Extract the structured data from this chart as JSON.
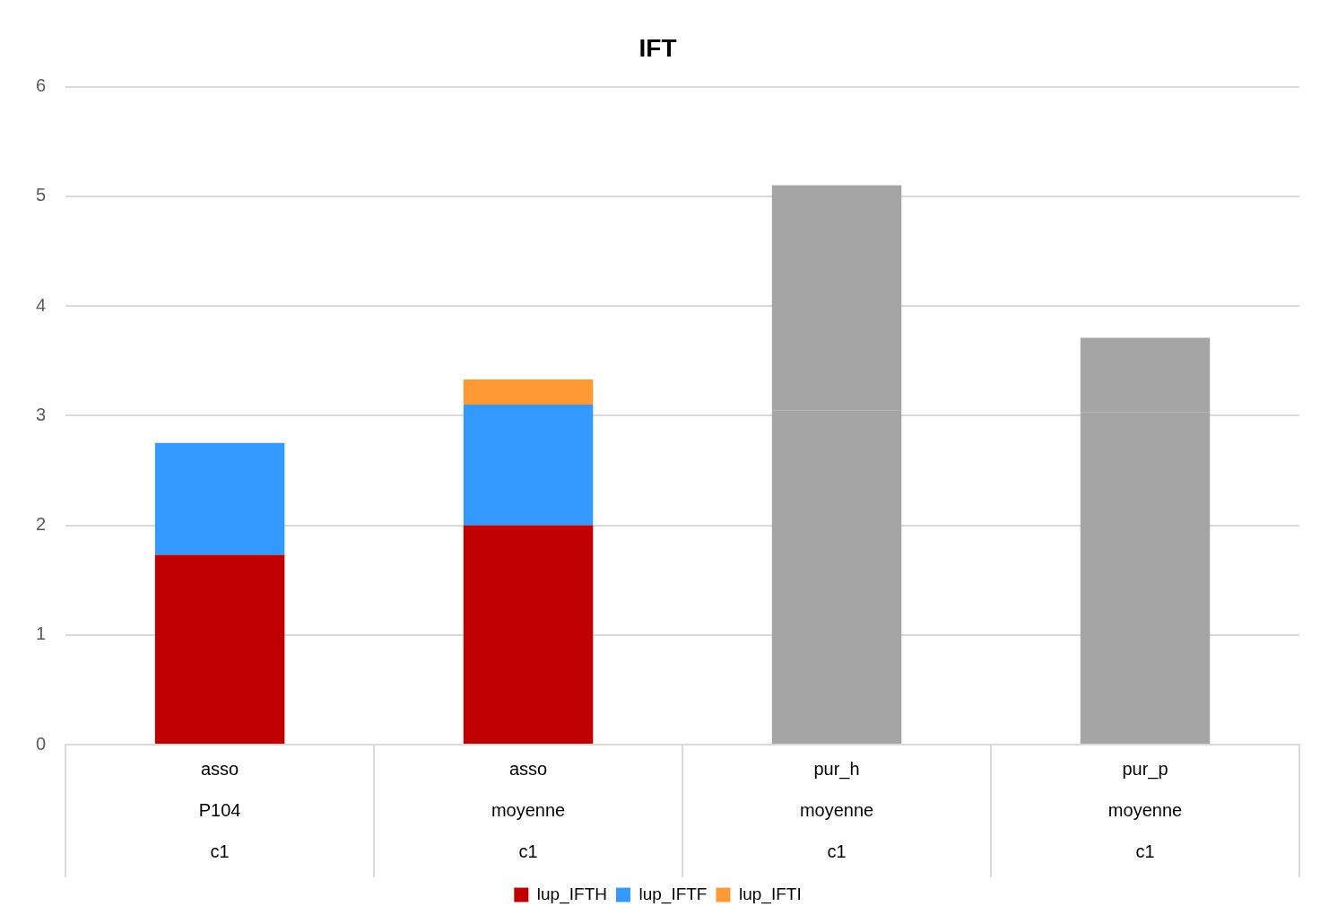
{
  "chart_data": {
    "type": "bar",
    "title": "IFT",
    "stacked": true,
    "categories": [
      "asso\nP104\nc1",
      "asso\nmoyenne\nc1",
      "pur_h\nmoyenne\nc1",
      "pur_p\nmoyenne\nc1"
    ],
    "series": [
      {
        "name": "lup_IFTH",
        "color": "#c00000",
        "colors": [
          "#c00000",
          "#c00000",
          "#a5a5a5",
          "#a5a5a5"
        ],
        "values": [
          1.73,
          2.0,
          3.05,
          3.03
        ]
      },
      {
        "name": "lup_IFTF",
        "color": "#3399ff",
        "colors": [
          "#3399ff",
          "#3399ff",
          "#a5a5a5",
          "#a5a5a5"
        ],
        "values": [
          1.02,
          1.1,
          2.05,
          0.68
        ]
      },
      {
        "name": "lup_IFTI",
        "color": "#ff9933",
        "colors": [
          null,
          "#ff9933",
          null,
          null
        ],
        "values": [
          null,
          0.23,
          null,
          null
        ]
      }
    ],
    "ylim": [
      0,
      6
    ],
    "yticks": [
      0,
      1,
      2,
      3,
      4,
      5,
      6
    ],
    "grid": "y",
    "legend": "bottom"
  }
}
